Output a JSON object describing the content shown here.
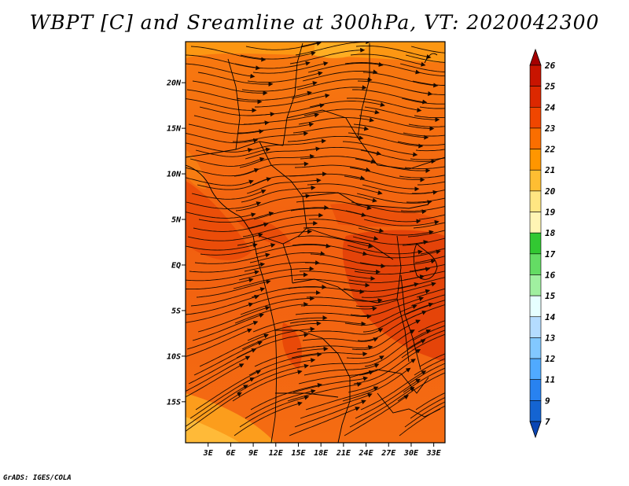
{
  "title": "WBPT [C] and Sreamline at 300hPa, VT: 2020042300",
  "credit": "GrADS: IGES/COLA",
  "map": {
    "lat_ticks": [
      "20N",
      "15N",
      "10N",
      "5N",
      "EQ",
      "5S",
      "10S",
      "15S"
    ],
    "lat_values": [
      20,
      15,
      10,
      5,
      0,
      -5,
      -10,
      -15
    ],
    "lon_ticks": [
      "3E",
      "6E",
      "9E",
      "12E",
      "15E",
      "18E",
      "21E",
      "24E",
      "27E",
      "30E",
      "33E"
    ],
    "lon_values": [
      3,
      6,
      9,
      12,
      15,
      18,
      21,
      24,
      27,
      30,
      33
    ],
    "lon_range": [
      0,
      34.5
    ],
    "lat_range": [
      -19.5,
      24.5
    ]
  },
  "colorbar": {
    "labels": [
      "26",
      "25",
      "24",
      "23",
      "22",
      "21",
      "20",
      "19",
      "18",
      "17",
      "16",
      "15",
      "14",
      "13",
      "12",
      "11",
      "9",
      "7"
    ],
    "colors": [
      "#a50000",
      "#c81400",
      "#dc2800",
      "#f04600",
      "#fa6e00",
      "#ff9600",
      "#ffbe32",
      "#ffe682",
      "#fff5b4",
      "#32c832",
      "#64dc64",
      "#a0f0a0",
      "#e6ffff",
      "#b4dcff",
      "#82c8ff",
      "#50aaff",
      "#2882f0",
      "#1464d2",
      "#0a46b4"
    ]
  }
}
